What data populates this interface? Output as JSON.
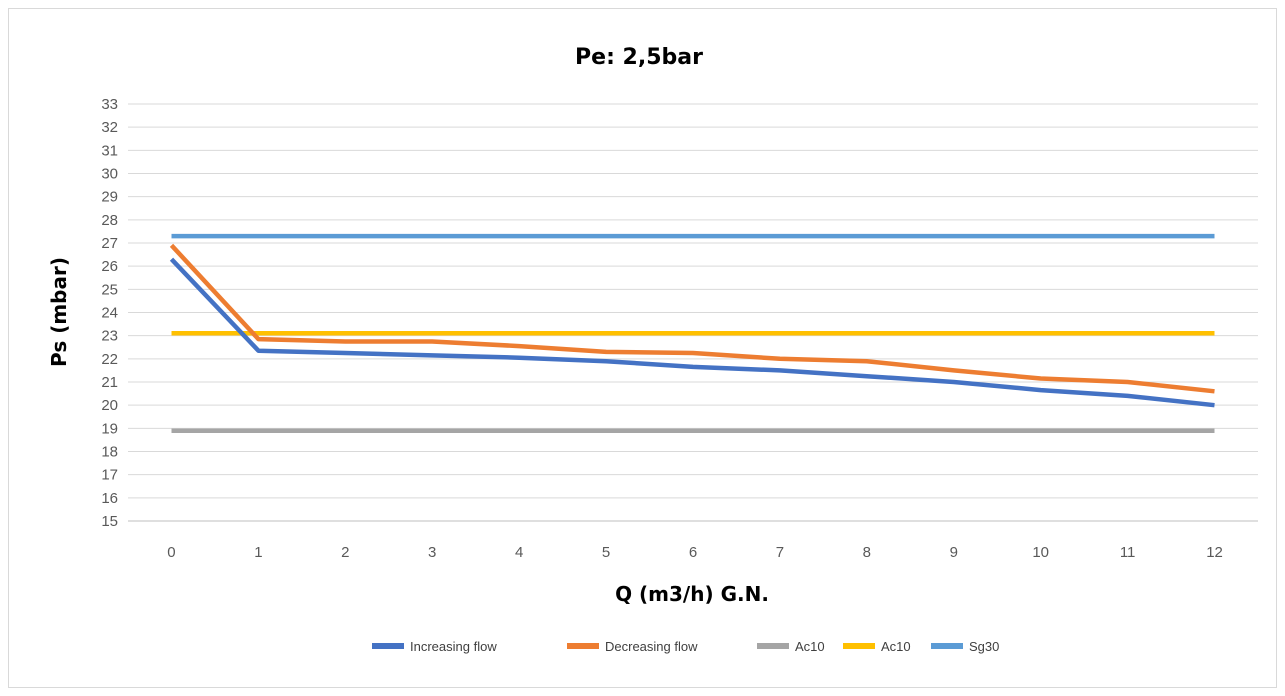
{
  "chart_data": {
    "type": "line",
    "title": "Pe: 2,5bar",
    "xlabel": "Q (m3/h) G.N.",
    "ylabel": "Ps (mbar)",
    "categories": [
      "0",
      "1",
      "2",
      "3",
      "4",
      "5",
      "6",
      "7",
      "8",
      "9",
      "10",
      "11",
      "12"
    ],
    "ylim": [
      15,
      33
    ],
    "yticks": [
      15,
      16,
      17,
      18,
      19,
      20,
      21,
      22,
      23,
      24,
      25,
      26,
      27,
      28,
      29,
      30,
      31,
      32,
      33
    ],
    "grid": true,
    "legend_position": "bottom",
    "series": [
      {
        "name": "Increasing flow",
        "color": "#4472c4",
        "values": [
          26.3,
          22.35,
          22.25,
          22.15,
          22.05,
          21.9,
          21.65,
          21.5,
          21.25,
          21.0,
          20.65,
          20.4,
          20.0
        ]
      },
      {
        "name": "Decreasing  flow",
        "color": "#ed7d31",
        "values": [
          26.9,
          22.85,
          22.75,
          22.75,
          22.55,
          22.3,
          22.25,
          22.0,
          21.9,
          21.5,
          21.15,
          21.0,
          20.6
        ]
      },
      {
        "name": "Ac10",
        "color": "#a5a5a5",
        "values": [
          18.9,
          18.9,
          18.9,
          18.9,
          18.9,
          18.9,
          18.9,
          18.9,
          18.9,
          18.9,
          18.9,
          18.9,
          18.9
        ]
      },
      {
        "name": "Ac10",
        "color": "#ffc000",
        "values": [
          23.1,
          23.1,
          23.1,
          23.1,
          23.1,
          23.1,
          23.1,
          23.1,
          23.1,
          23.1,
          23.1,
          23.1,
          23.1
        ]
      },
      {
        "name": "Sg30",
        "color": "#5b9bd5",
        "values": [
          27.3,
          27.3,
          27.3,
          27.3,
          27.3,
          27.3,
          27.3,
          27.3,
          27.3,
          27.3,
          27.3,
          27.3,
          27.3
        ]
      }
    ]
  }
}
